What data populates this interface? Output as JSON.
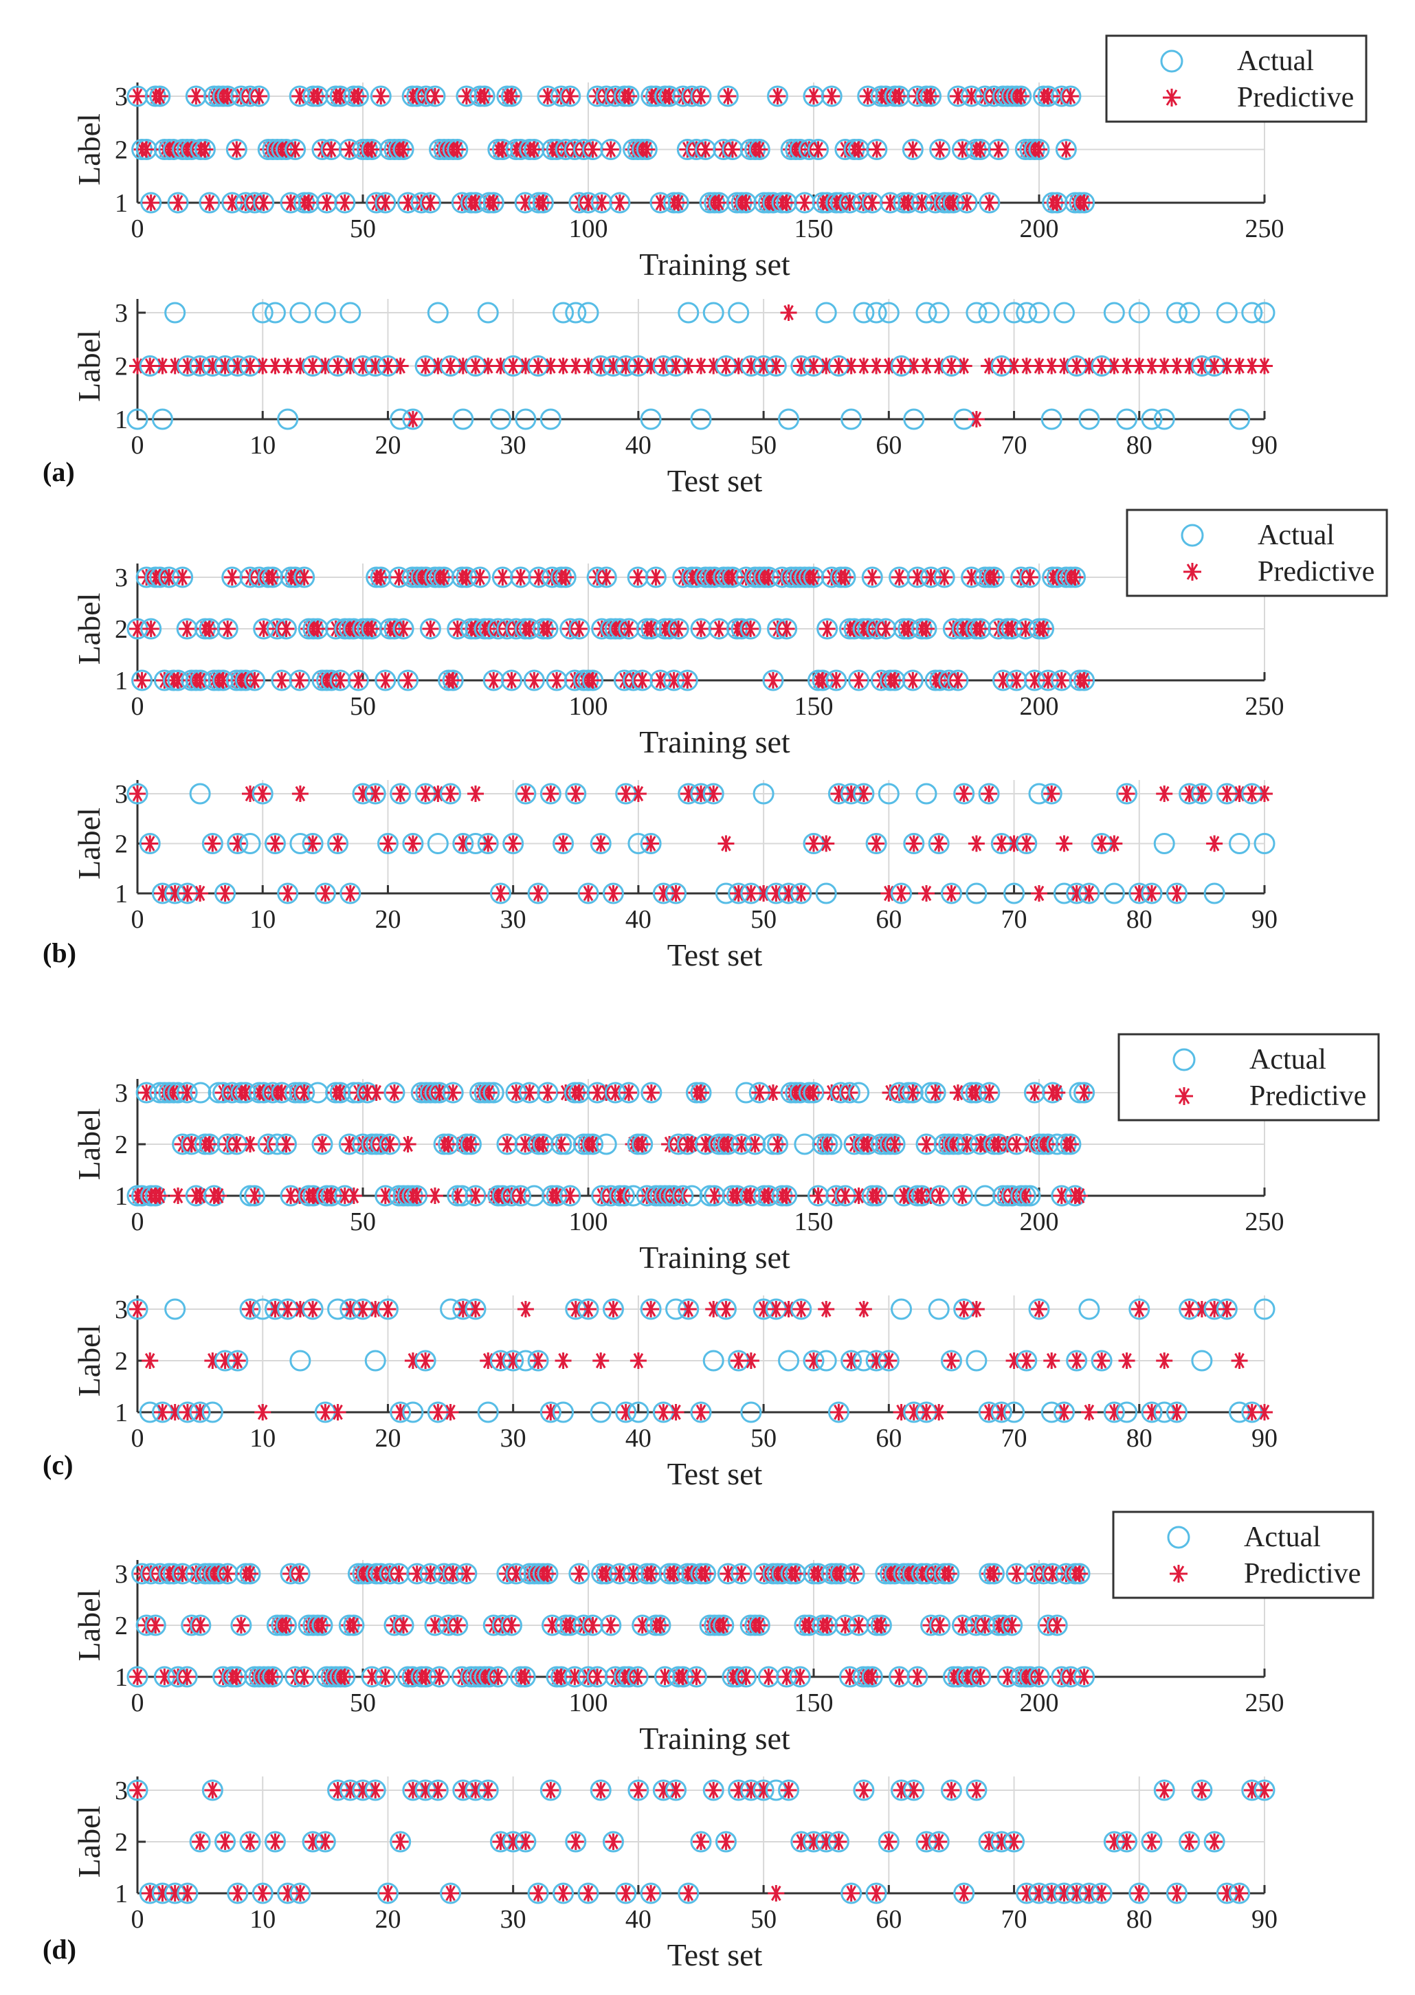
{
  "figure": {
    "colors": {
      "actual": "#57bde6",
      "predictive": "#e01b3c",
      "axis": "#333333",
      "grid": "#d8d8d8"
    },
    "legend": {
      "actual_label": "Actual",
      "predictive_label": "Predictive"
    }
  },
  "chart_data": [
    {
      "panel": "(a)",
      "subplot": "train",
      "type": "scatter",
      "xlabel": "Training set",
      "ylabel": "Label",
      "xlim": [
        0,
        250
      ],
      "ylim": [
        1,
        3
      ],
      "xticks": [
        0,
        50,
        100,
        150,
        200,
        250
      ],
      "yticks": [
        1,
        2,
        3
      ],
      "n": 211,
      "mismatch": [],
      "pred_constant": null
    },
    {
      "panel": "(a)",
      "subplot": "test",
      "type": "scatter",
      "xlabel": "Test set",
      "ylabel": "Label",
      "xlim": [
        0,
        90
      ],
      "ylim": [
        1,
        3
      ],
      "xticks": [
        0,
        10,
        20,
        30,
        40,
        50,
        60,
        70,
        80,
        90
      ],
      "yticks": [
        1,
        2,
        3
      ],
      "n": 91,
      "mismatch": [],
      "pred_constant": 2,
      "pred_override": [
        [
          22,
          1
        ],
        [
          52,
          3
        ],
        [
          67,
          1
        ]
      ]
    },
    {
      "panel": "(b)",
      "subplot": "train",
      "type": "scatter",
      "xlabel": "Training set",
      "ylabel": "Label",
      "xlim": [
        0,
        250
      ],
      "ylim": [
        1,
        3
      ],
      "xticks": [
        0,
        50,
        100,
        150,
        200,
        250
      ],
      "yticks": [
        1,
        2,
        3
      ],
      "n": 211,
      "mismatch": [],
      "pred_constant": null
    },
    {
      "panel": "(b)",
      "subplot": "test",
      "type": "scatter",
      "xlabel": "Test set",
      "ylabel": "Label",
      "xlim": [
        0,
        90
      ],
      "ylim": [
        1,
        3
      ],
      "xticks": [
        0,
        10,
        20,
        30,
        40,
        50,
        60,
        70,
        80,
        90
      ],
      "yticks": [
        1,
        2,
        3
      ],
      "n": 91,
      "mismatch": [
        5,
        9,
        13,
        24,
        27,
        40,
        47,
        50,
        55,
        60,
        63,
        67,
        70,
        72,
        74,
        78,
        82,
        86,
        88,
        90
      ],
      "pred_constant": null
    },
    {
      "panel": "(c)",
      "subplot": "train",
      "type": "scatter",
      "xlabel": "Training set",
      "ylabel": "Label",
      "xlim": [
        0,
        250
      ],
      "ylim": [
        1,
        3
      ],
      "xticks": [
        0,
        50,
        100,
        150,
        200,
        250
      ],
      "yticks": [
        1,
        2,
        3
      ],
      "n": 211,
      "mismatch": [
        5,
        9,
        14,
        18,
        25,
        31,
        36,
        40,
        48,
        53,
        60,
        66,
        72,
        79,
        88,
        95,
        104,
        110,
        118,
        123,
        127,
        135,
        141,
        148,
        154,
        160,
        167,
        171,
        176,
        182,
        188,
        193,
        198,
        204,
        209
      ],
      "pred_constant": null
    },
    {
      "panel": "(c)",
      "subplot": "test",
      "type": "scatter",
      "xlabel": "Test set",
      "ylabel": "Label",
      "xlim": [
        0,
        90
      ],
      "ylim": [
        1,
        3
      ],
      "xticks": [
        0,
        10,
        20,
        30,
        40,
        50,
        60,
        70,
        80,
        90
      ],
      "yticks": [
        1,
        2,
        3
      ],
      "n": 91,
      "mismatch": [
        1,
        3,
        6,
        10,
        13,
        16,
        19,
        22,
        25,
        28,
        31,
        34,
        37,
        40,
        43,
        46,
        49,
        52,
        55,
        58,
        61,
        64,
        67,
        70,
        73,
        76,
        79,
        82,
        85,
        88,
        90
      ],
      "pred_constant": null
    },
    {
      "panel": "(d)",
      "subplot": "train",
      "type": "scatter",
      "xlabel": "Training set",
      "ylabel": "Label",
      "xlim": [
        0,
        250
      ],
      "ylim": [
        1,
        3
      ],
      "xticks": [
        0,
        50,
        100,
        150,
        200,
        250
      ],
      "yticks": [
        1,
        2,
        3
      ],
      "n": 211,
      "mismatch": [],
      "pred_constant": null
    },
    {
      "panel": "(d)",
      "subplot": "test",
      "type": "scatter",
      "xlabel": "Test set",
      "ylabel": "Label",
      "xlim": [
        0,
        90
      ],
      "ylim": [
        1,
        3
      ],
      "xticks": [
        0,
        10,
        20,
        30,
        40,
        50,
        60,
        70,
        80,
        90
      ],
      "yticks": [
        1,
        2,
        3
      ],
      "n": 91,
      "mismatch": [
        51
      ],
      "pred_constant": null
    }
  ]
}
